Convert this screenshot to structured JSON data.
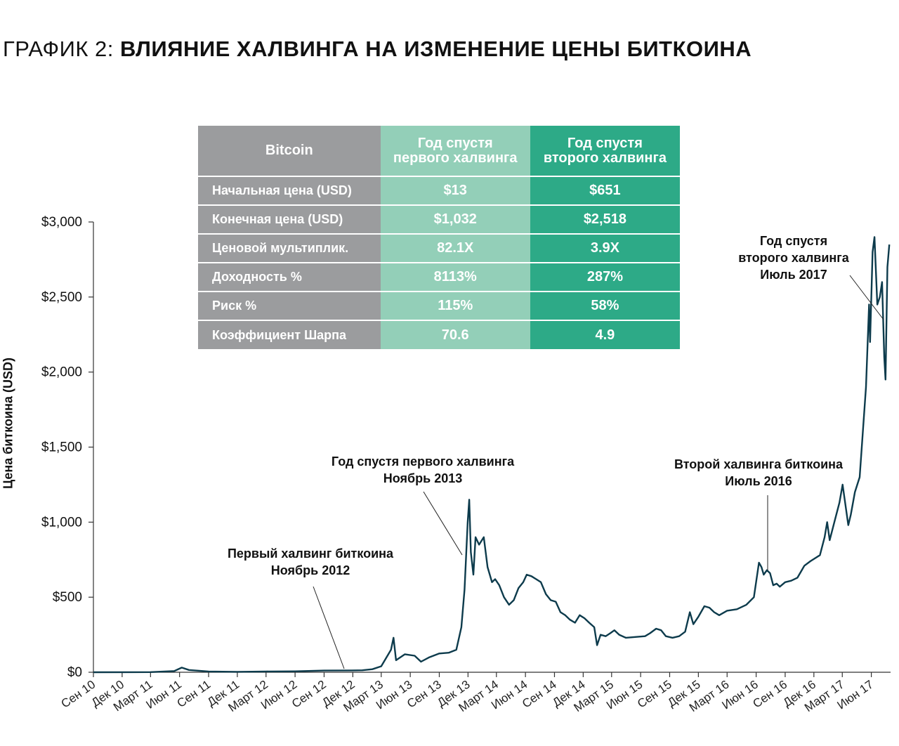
{
  "title": {
    "prefix": "ГРАФИК 2:",
    "main": "ВЛИЯНИЕ ХАЛВИНГА НА ИЗМЕНЕНИЕ ЦЕНЫ БИТКОИНА"
  },
  "table": {
    "header": [
      "Bitcoin",
      "Год спустя первого халвинга",
      "Год спустя второго халвинга"
    ],
    "header_lines": [
      [
        "Bitcoin"
      ],
      [
        "Год спустя",
        "первого халвинга"
      ],
      [
        "Год спустя",
        "второго халвинга"
      ]
    ],
    "rows": [
      {
        "label": "Начальная цена (USD)",
        "first": "$13",
        "second": "$651"
      },
      {
        "label": "Конечная цена (USD)",
        "first": "$1,032",
        "second": "$2,518"
      },
      {
        "label": "Ценовой мультиплик.",
        "first": "82.1X",
        "second": "3.9X"
      },
      {
        "label": "Доходность %",
        "first": "8113%",
        "second": "287%"
      },
      {
        "label": "Риск %",
        "first": "115%",
        "second": "58%"
      },
      {
        "label": "Коэффициент Шарпа",
        "first": "70.6",
        "second": "4.9"
      }
    ],
    "colors": {
      "label_bg": "#9b9c9e",
      "first_bg": "#93cfb8",
      "second_bg": "#2daa87"
    }
  },
  "annotations": [
    {
      "lines": [
        "Год спустя",
        "второго халвинга",
        "Июль 2017"
      ]
    },
    {
      "lines": [
        "Год спустя первого халвинга",
        "Ноябрь 2013"
      ]
    },
    {
      "lines": [
        "Второй халвинга биткоина",
        "Июль 2016"
      ]
    },
    {
      "lines": [
        "Первый халвинг биткоина",
        "Ноябрь 2012"
      ]
    }
  ],
  "chart_data": {
    "type": "line",
    "title": "ВЛИЯНИЕ ХАЛВИНГА НА ИЗМЕНЕНИЕ ЦЕНЫ БИТКОИНА",
    "xlabel": "",
    "ylabel": "Цена биткоина (USD)",
    "ylim": [
      0,
      3000
    ],
    "yticks": [
      0,
      500,
      1000,
      1500,
      2000,
      2500,
      3000
    ],
    "ytick_labels": [
      "$0",
      "$500",
      "$1,000",
      "$1,500",
      "$2,000",
      "$2,500",
      "$3,000"
    ],
    "xlim": [
      "2010-09",
      "2017-07"
    ],
    "xticks": [
      "2010-09",
      "2010-12",
      "2011-03",
      "2011-06",
      "2011-09",
      "2011-12",
      "2012-03",
      "2012-06",
      "2012-09",
      "2012-12",
      "2013-03",
      "2013-06",
      "2013-09",
      "2013-12",
      "2014-03",
      "2014-06",
      "2014-09",
      "2014-12",
      "2015-03",
      "2015-06",
      "2015-09",
      "2015-12",
      "2016-03",
      "2016-06",
      "2016-09",
      "2016-12",
      "2017-03",
      "2017-06"
    ],
    "xtick_labels": [
      "Сен 10",
      "Дек 10",
      "Март 11",
      "Июн 11",
      "Сен 11",
      "Дек 11",
      "Март 12",
      "Июн 12",
      "Сен 12",
      "Дек 12",
      "Март 13",
      "Июн 13",
      "Сен 13",
      "Дек 13",
      "Март 14",
      "Июн 14",
      "Сен 14",
      "Дек 14",
      "Март 15",
      "Июн 15",
      "Сен 15",
      "Дек 15",
      "Март 16",
      "Июн 16",
      "Сен 16",
      "Дек 16",
      "Март 17",
      "Июн 17"
    ],
    "grid": false,
    "line_color": "#0d3b4c",
    "series": [
      {
        "x": [
          "2010-09-01",
          "2011-01-01",
          "2011-03-01",
          "2011-05-15",
          "2011-06-08",
          "2011-07-01",
          "2011-09-01",
          "2011-12-01",
          "2012-03-01",
          "2012-06-01",
          "2012-09-01",
          "2012-11-28",
          "2012-12-31",
          "2013-02-01",
          "2013-03-01",
          "2013-04-01",
          "2013-04-09",
          "2013-04-17",
          "2013-05-15",
          "2013-06-15",
          "2013-07-05",
          "2013-08-01",
          "2013-09-01",
          "2013-10-01",
          "2013-10-25",
          "2013-11-10",
          "2013-11-20",
          "2013-11-30",
          "2013-12-05",
          "2013-12-10",
          "2013-12-18",
          "2013-12-25",
          "2014-01-05",
          "2014-01-20",
          "2014-02-01",
          "2014-02-15",
          "2014-02-25",
          "2014-03-10",
          "2014-03-25",
          "2014-04-10",
          "2014-04-25",
          "2014-05-10",
          "2014-05-25",
          "2014-06-05",
          "2014-06-20",
          "2014-07-05",
          "2014-07-20",
          "2014-08-05",
          "2014-08-20",
          "2014-09-05",
          "2014-09-20",
          "2014-10-05",
          "2014-10-20",
          "2014-11-05",
          "2014-11-20",
          "2014-12-05",
          "2014-12-20",
          "2015-01-05",
          "2015-01-14",
          "2015-01-25",
          "2015-02-10",
          "2015-02-25",
          "2015-03-10",
          "2015-03-25",
          "2015-04-15",
          "2015-05-15",
          "2015-06-15",
          "2015-07-01",
          "2015-07-20",
          "2015-08-05",
          "2015-08-20",
          "2015-09-10",
          "2015-10-01",
          "2015-10-20",
          "2015-11-04",
          "2015-11-15",
          "2015-12-01",
          "2015-12-20",
          "2016-01-05",
          "2016-01-20",
          "2016-02-05",
          "2016-03-01",
          "2016-04-01",
          "2016-05-01",
          "2016-05-25",
          "2016-06-10",
          "2016-06-18",
          "2016-06-25",
          "2016-07-05",
          "2016-07-15",
          "2016-07-25",
          "2016-08-05",
          "2016-08-15",
          "2016-09-01",
          "2016-09-20",
          "2016-10-10",
          "2016-11-01",
          "2016-11-20",
          "2016-12-05",
          "2016-12-20",
          "2017-01-04",
          "2017-01-12",
          "2017-01-20",
          "2017-02-05",
          "2017-02-20",
          "2017-03-02",
          "2017-03-12",
          "2017-03-20",
          "2017-03-28",
          "2017-04-10",
          "2017-04-25",
          "2017-05-05",
          "2017-05-15",
          "2017-05-25",
          "2017-05-28",
          "2017-06-05",
          "2017-06-11",
          "2017-06-20",
          "2017-06-28",
          "2017-07-05",
          "2017-07-12",
          "2017-07-16",
          "2017-07-22",
          "2017-07-28"
        ],
        "y": [
          0,
          0.3,
          1,
          8,
          31,
          15,
          5,
          3,
          5,
          6,
          11,
          12,
          13,
          20,
          40,
          150,
          230,
          80,
          120,
          110,
          70,
          100,
          125,
          130,
          150,
          300,
          550,
          1000,
          1150,
          800,
          650,
          900,
          850,
          900,
          700,
          600,
          620,
          580,
          500,
          450,
          480,
          560,
          600,
          650,
          640,
          620,
          600,
          520,
          480,
          470,
          400,
          380,
          350,
          330,
          380,
          360,
          330,
          300,
          180,
          250,
          240,
          260,
          280,
          250,
          230,
          235,
          240,
          260,
          290,
          280,
          240,
          230,
          240,
          270,
          400,
          320,
          370,
          440,
          430,
          400,
          380,
          410,
          420,
          450,
          500,
          730,
          700,
          650,
          680,
          660,
          580,
          590,
          570,
          600,
          610,
          630,
          710,
          740,
          760,
          780,
          900,
          1000,
          880,
          1010,
          1130,
          1250,
          1100,
          980,
          1050,
          1200,
          1300,
          1600,
          1900,
          2450,
          2200,
          2800,
          2900,
          2450,
          2500,
          2600,
          2100,
          1950,
          2700,
          2850
        ]
      }
    ]
  }
}
